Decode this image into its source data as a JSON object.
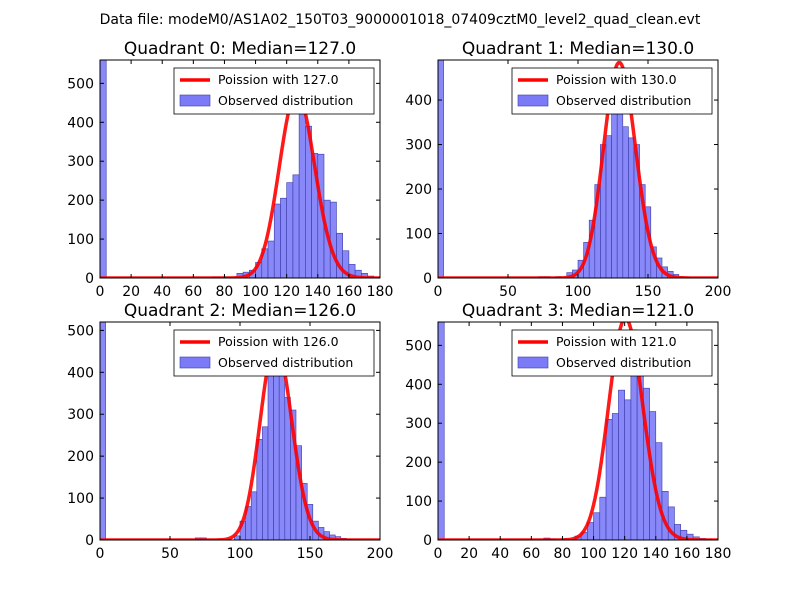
{
  "figure_title": "Data file: modeM0/AS1A02_150T03_9000001018_07409cztM0_level2_quad_clean.evt",
  "chart_data": [
    {
      "type": "bar",
      "title": "Quadrant 0: Median=127.0",
      "median": 127.0,
      "xlim": [
        0,
        180
      ],
      "ylim": [
        0,
        560
      ],
      "xticks": [
        0,
        20,
        40,
        60,
        80,
        100,
        120,
        140,
        160,
        180
      ],
      "yticks": [
        0,
        100,
        200,
        300,
        400,
        500
      ],
      "bin_width": 4,
      "bins": [
        [
          0,
          560
        ],
        [
          72,
          3
        ],
        [
          76,
          3
        ],
        [
          80,
          3
        ],
        [
          88,
          12
        ],
        [
          92,
          15
        ],
        [
          96,
          20
        ],
        [
          100,
          40
        ],
        [
          104,
          75
        ],
        [
          108,
          95
        ],
        [
          112,
          190
        ],
        [
          116,
          205
        ],
        [
          120,
          245
        ],
        [
          124,
          265
        ],
        [
          128,
          515
        ],
        [
          132,
          390
        ],
        [
          136,
          320
        ],
        [
          140,
          318
        ],
        [
          144,
          200
        ],
        [
          148,
          195
        ],
        [
          152,
          115
        ],
        [
          156,
          70
        ],
        [
          160,
          35
        ],
        [
          164,
          20
        ],
        [
          168,
          12
        ],
        [
          172,
          5
        ],
        [
          176,
          2
        ]
      ],
      "series": [
        {
          "name": "Poission with 127.0",
          "color": "#ff0000"
        },
        {
          "name": "Observed distribution",
          "color": "#7b7bf7"
        }
      ]
    },
    {
      "type": "bar",
      "title": "Quadrant 1: Median=130.0",
      "median": 130.0,
      "xlim": [
        0,
        200
      ],
      "ylim": [
        0,
        490
      ],
      "xticks": [
        0,
        50,
        100,
        150,
        200
      ],
      "yticks": [
        0,
        100,
        200,
        300,
        400
      ],
      "bin_width": 4,
      "bins": [
        [
          0,
          490
        ],
        [
          72,
          3
        ],
        [
          76,
          3
        ],
        [
          84,
          3
        ],
        [
          92,
          12
        ],
        [
          96,
          18
        ],
        [
          100,
          40
        ],
        [
          104,
          80
        ],
        [
          108,
          130
        ],
        [
          112,
          210
        ],
        [
          116,
          300
        ],
        [
          120,
          320
        ],
        [
          124,
          455
        ],
        [
          128,
          395
        ],
        [
          132,
          340
        ],
        [
          136,
          315
        ],
        [
          140,
          300
        ],
        [
          144,
          210
        ],
        [
          148,
          160
        ],
        [
          152,
          70
        ],
        [
          156,
          45
        ],
        [
          160,
          25
        ],
        [
          164,
          15
        ],
        [
          168,
          8
        ],
        [
          172,
          3
        ],
        [
          176,
          2
        ]
      ],
      "series": [
        {
          "name": "Poission with 130.0",
          "color": "#ff0000"
        },
        {
          "name": "Observed distribution",
          "color": "#7b7bf7"
        }
      ]
    },
    {
      "type": "bar",
      "title": "Quadrant 2: Median=126.0",
      "median": 126.0,
      "xlim": [
        0,
        200
      ],
      "ylim": [
        0,
        520
      ],
      "xticks": [
        0,
        50,
        100,
        150,
        200
      ],
      "yticks": [
        0,
        100,
        200,
        300,
        400,
        500
      ],
      "bin_width": 4,
      "bins": [
        [
          0,
          520
        ],
        [
          68,
          5
        ],
        [
          72,
          5
        ],
        [
          96,
          10
        ],
        [
          100,
          45
        ],
        [
          104,
          80
        ],
        [
          108,
          115
        ],
        [
          112,
          240
        ],
        [
          116,
          270
        ],
        [
          120,
          415
        ],
        [
          124,
          465
        ],
        [
          128,
          445
        ],
        [
          132,
          340
        ],
        [
          136,
          310
        ],
        [
          140,
          225
        ],
        [
          144,
          135
        ],
        [
          148,
          85
        ],
        [
          152,
          45
        ],
        [
          156,
          30
        ],
        [
          160,
          20
        ],
        [
          164,
          12
        ],
        [
          168,
          8
        ],
        [
          172,
          4
        ],
        [
          176,
          2
        ]
      ],
      "series": [
        {
          "name": "Poission with 126.0",
          "color": "#ff0000"
        },
        {
          "name": "Observed distribution",
          "color": "#7b7bf7"
        }
      ]
    },
    {
      "type": "bar",
      "title": "Quadrant 3: Median=121.0",
      "median": 121.0,
      "xlim": [
        0,
        180
      ],
      "ylim": [
        0,
        560
      ],
      "xticks": [
        0,
        20,
        40,
        60,
        80,
        100,
        120,
        140,
        160,
        180
      ],
      "yticks": [
        0,
        100,
        200,
        300,
        400,
        500
      ],
      "bin_width": 4,
      "bins": [
        [
          0,
          560
        ],
        [
          68,
          5
        ],
        [
          72,
          3
        ],
        [
          80,
          3
        ],
        [
          88,
          10
        ],
        [
          92,
          20
        ],
        [
          96,
          45
        ],
        [
          100,
          70
        ],
        [
          104,
          110
        ],
        [
          108,
          310
        ],
        [
          112,
          325
        ],
        [
          116,
          385
        ],
        [
          120,
          360
        ],
        [
          124,
          540
        ],
        [
          128,
          465
        ],
        [
          132,
          390
        ],
        [
          136,
          330
        ],
        [
          140,
          250
        ],
        [
          144,
          125
        ],
        [
          148,
          85
        ],
        [
          152,
          40
        ],
        [
          156,
          25
        ],
        [
          160,
          15
        ],
        [
          164,
          8
        ],
        [
          168,
          4
        ],
        [
          172,
          2
        ]
      ],
      "series": [
        {
          "name": "Poission with 121.0",
          "color": "#ff0000"
        },
        {
          "name": "Observed distribution",
          "color": "#7b7bf7"
        }
      ]
    }
  ]
}
